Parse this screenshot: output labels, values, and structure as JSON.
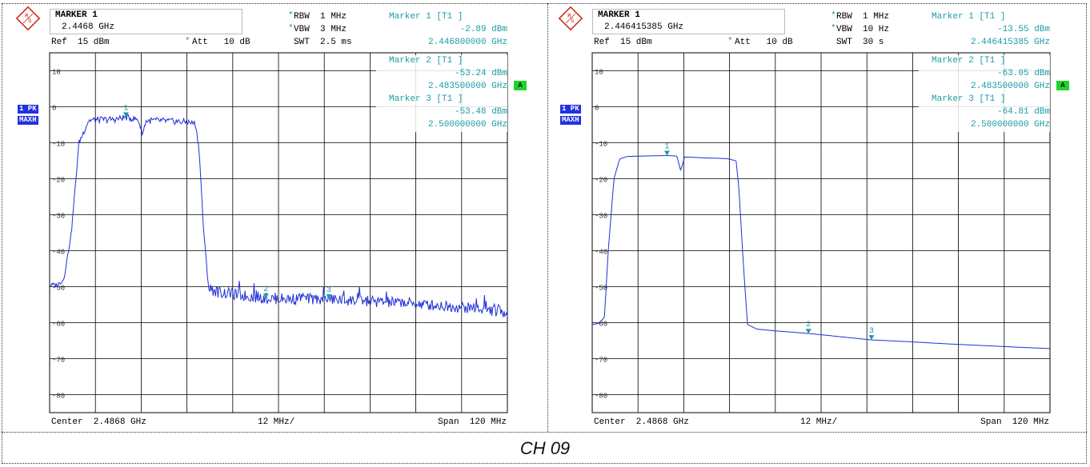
{
  "caption": "CH 09",
  "colors": {
    "trace": "#1f2fd6",
    "marker": "#1a9ca6",
    "grid": "#000000",
    "badge_blue": "#2031e0",
    "badge_green": "#22d32a"
  },
  "panels": [
    {
      "marker_box": {
        "title": "MARKER 1",
        "value": "2.4468 GHz"
      },
      "rbw": "RBW  1 MHz",
      "vbw": "VBW  3 MHz",
      "att": "Att   10 dB",
      "swt": "SWT  2.5 ms",
      "ref": "Ref  15 dBm",
      "center": "Center  2.4868 GHz",
      "div": "12 MHz/",
      "span": "Span  120 MHz",
      "trace_badge": "1 PK",
      "mode_badge": "MAXH",
      "a_badge": "A",
      "markers": [
        {
          "label": "Marker 1 [T1 ]",
          "level": "-2.89 dBm",
          "freq": "2.446800000 GHz"
        },
        {
          "label": "Marker 2 [T1 ]",
          "level": "-53.24 dBm",
          "freq": "2.483500000 GHz"
        },
        {
          "label": "Marker 3 [T1 ]",
          "level": "-53.48 dBm",
          "freq": "2.500000000 GHz"
        }
      ]
    },
    {
      "marker_box": {
        "title": "MARKER 1",
        "value": "2.446415385 GHz"
      },
      "rbw": "RBW  1 MHz",
      "vbw": "VBW  10 Hz",
      "att": "Att   10 dB",
      "swt": "SWT  30 s",
      "ref": "Ref  15 dBm",
      "center": "Center  2.4868 GHz",
      "div": "12 MHz/",
      "span": "Span  120 MHz",
      "trace_badge": "1 PK",
      "mode_badge": "MAXH",
      "a_badge": "A",
      "markers": [
        {
          "label": "Marker 1 [T1 ]",
          "level": "-13.55 dBm",
          "freq": "2.446415385 GHz"
        },
        {
          "label": "Marker 2 [T1 ]",
          "level": "-63.05 dBm",
          "freq": "2.483500000 GHz"
        },
        {
          "label": "Marker 3 [T1 ]",
          "level": "-64.81 dBm",
          "freq": "2.500000000 GHz"
        }
      ]
    }
  ],
  "chart_data": [
    {
      "type": "line",
      "title": "",
      "xlabel": "",
      "ylabel": "",
      "xlim": [
        2.4268,
        2.5468
      ],
      "ylim": [
        -85,
        15
      ],
      "x_unit": "GHz",
      "y_unit": "dBm",
      "y_tick_labels": [
        "10",
        "0",
        "-10",
        "-20",
        "-30",
        "-40",
        "-50",
        "-60",
        "-70",
        "-80"
      ],
      "grid": true,
      "series": [
        {
          "x": [
            2.4268,
            2.4288,
            2.4305,
            2.4325,
            2.4345,
            2.437,
            2.44,
            2.444,
            2.4468,
            2.45,
            2.4512,
            2.452,
            2.454,
            2.458,
            2.462,
            2.465,
            2.466,
            2.4672,
            2.4685,
            2.471,
            2.476,
            2.4835,
            2.49,
            2.5,
            2.51,
            2.52,
            2.53,
            2.54,
            2.5468
          ],
          "y": [
            -49.5,
            -49.5,
            -48.0,
            -35.0,
            -10.0,
            -3.8,
            -3.6,
            -3.5,
            -2.9,
            -3.6,
            -7.5,
            -4.0,
            -3.8,
            -4.0,
            -4.2,
            -4.6,
            -12.0,
            -35.0,
            -50.5,
            -51.5,
            -52.3,
            -53.2,
            -53.4,
            -53.5,
            -54.0,
            -54.6,
            -55.3,
            -56.2,
            -57.2
          ]
        },
        {
          "x": [
            2.4468,
            2.4835,
            2.5
          ],
          "y": [
            -2.89,
            -53.24,
            -53.48
          ],
          "marker_labels": [
            "1",
            "2",
            "3"
          ]
        }
      ]
    },
    {
      "type": "line",
      "title": "",
      "xlabel": "",
      "ylabel": "",
      "xlim": [
        2.4268,
        2.5468
      ],
      "ylim": [
        -85,
        15
      ],
      "x_unit": "GHz",
      "y_unit": "dBm",
      "y_tick_labels": [
        "10",
        "0",
        "-10",
        "-20",
        "-30",
        "-40",
        "-50",
        "-60",
        "-70",
        "-80"
      ],
      "grid": true,
      "series": [
        {
          "x": [
            2.4268,
            2.4285,
            2.43,
            2.431,
            2.4325,
            2.434,
            2.436,
            2.44,
            2.444,
            2.4464,
            2.449,
            2.45,
            2.451,
            2.4525,
            2.456,
            2.462,
            2.4645,
            2.4652,
            2.4665,
            2.4675,
            2.47,
            2.475,
            2.4835,
            2.49,
            2.5,
            2.51,
            2.52,
            2.53,
            2.54,
            2.5468
          ],
          "y": [
            -60.5,
            -60.2,
            -58.5,
            -40.0,
            -20.0,
            -14.5,
            -13.8,
            -13.7,
            -13.6,
            -13.55,
            -13.7,
            -17.8,
            -14.0,
            -14.0,
            -14.2,
            -14.4,
            -15.0,
            -22.0,
            -45.0,
            -60.5,
            -61.8,
            -62.3,
            -63.0,
            -63.7,
            -64.8,
            -65.3,
            -65.9,
            -66.4,
            -66.9,
            -67.2
          ]
        },
        {
          "x": [
            2.446415385,
            2.4835,
            2.5
          ],
          "y": [
            -13.55,
            -63.05,
            -64.81
          ],
          "marker_labels": [
            "1",
            "2",
            "3"
          ]
        }
      ]
    }
  ]
}
